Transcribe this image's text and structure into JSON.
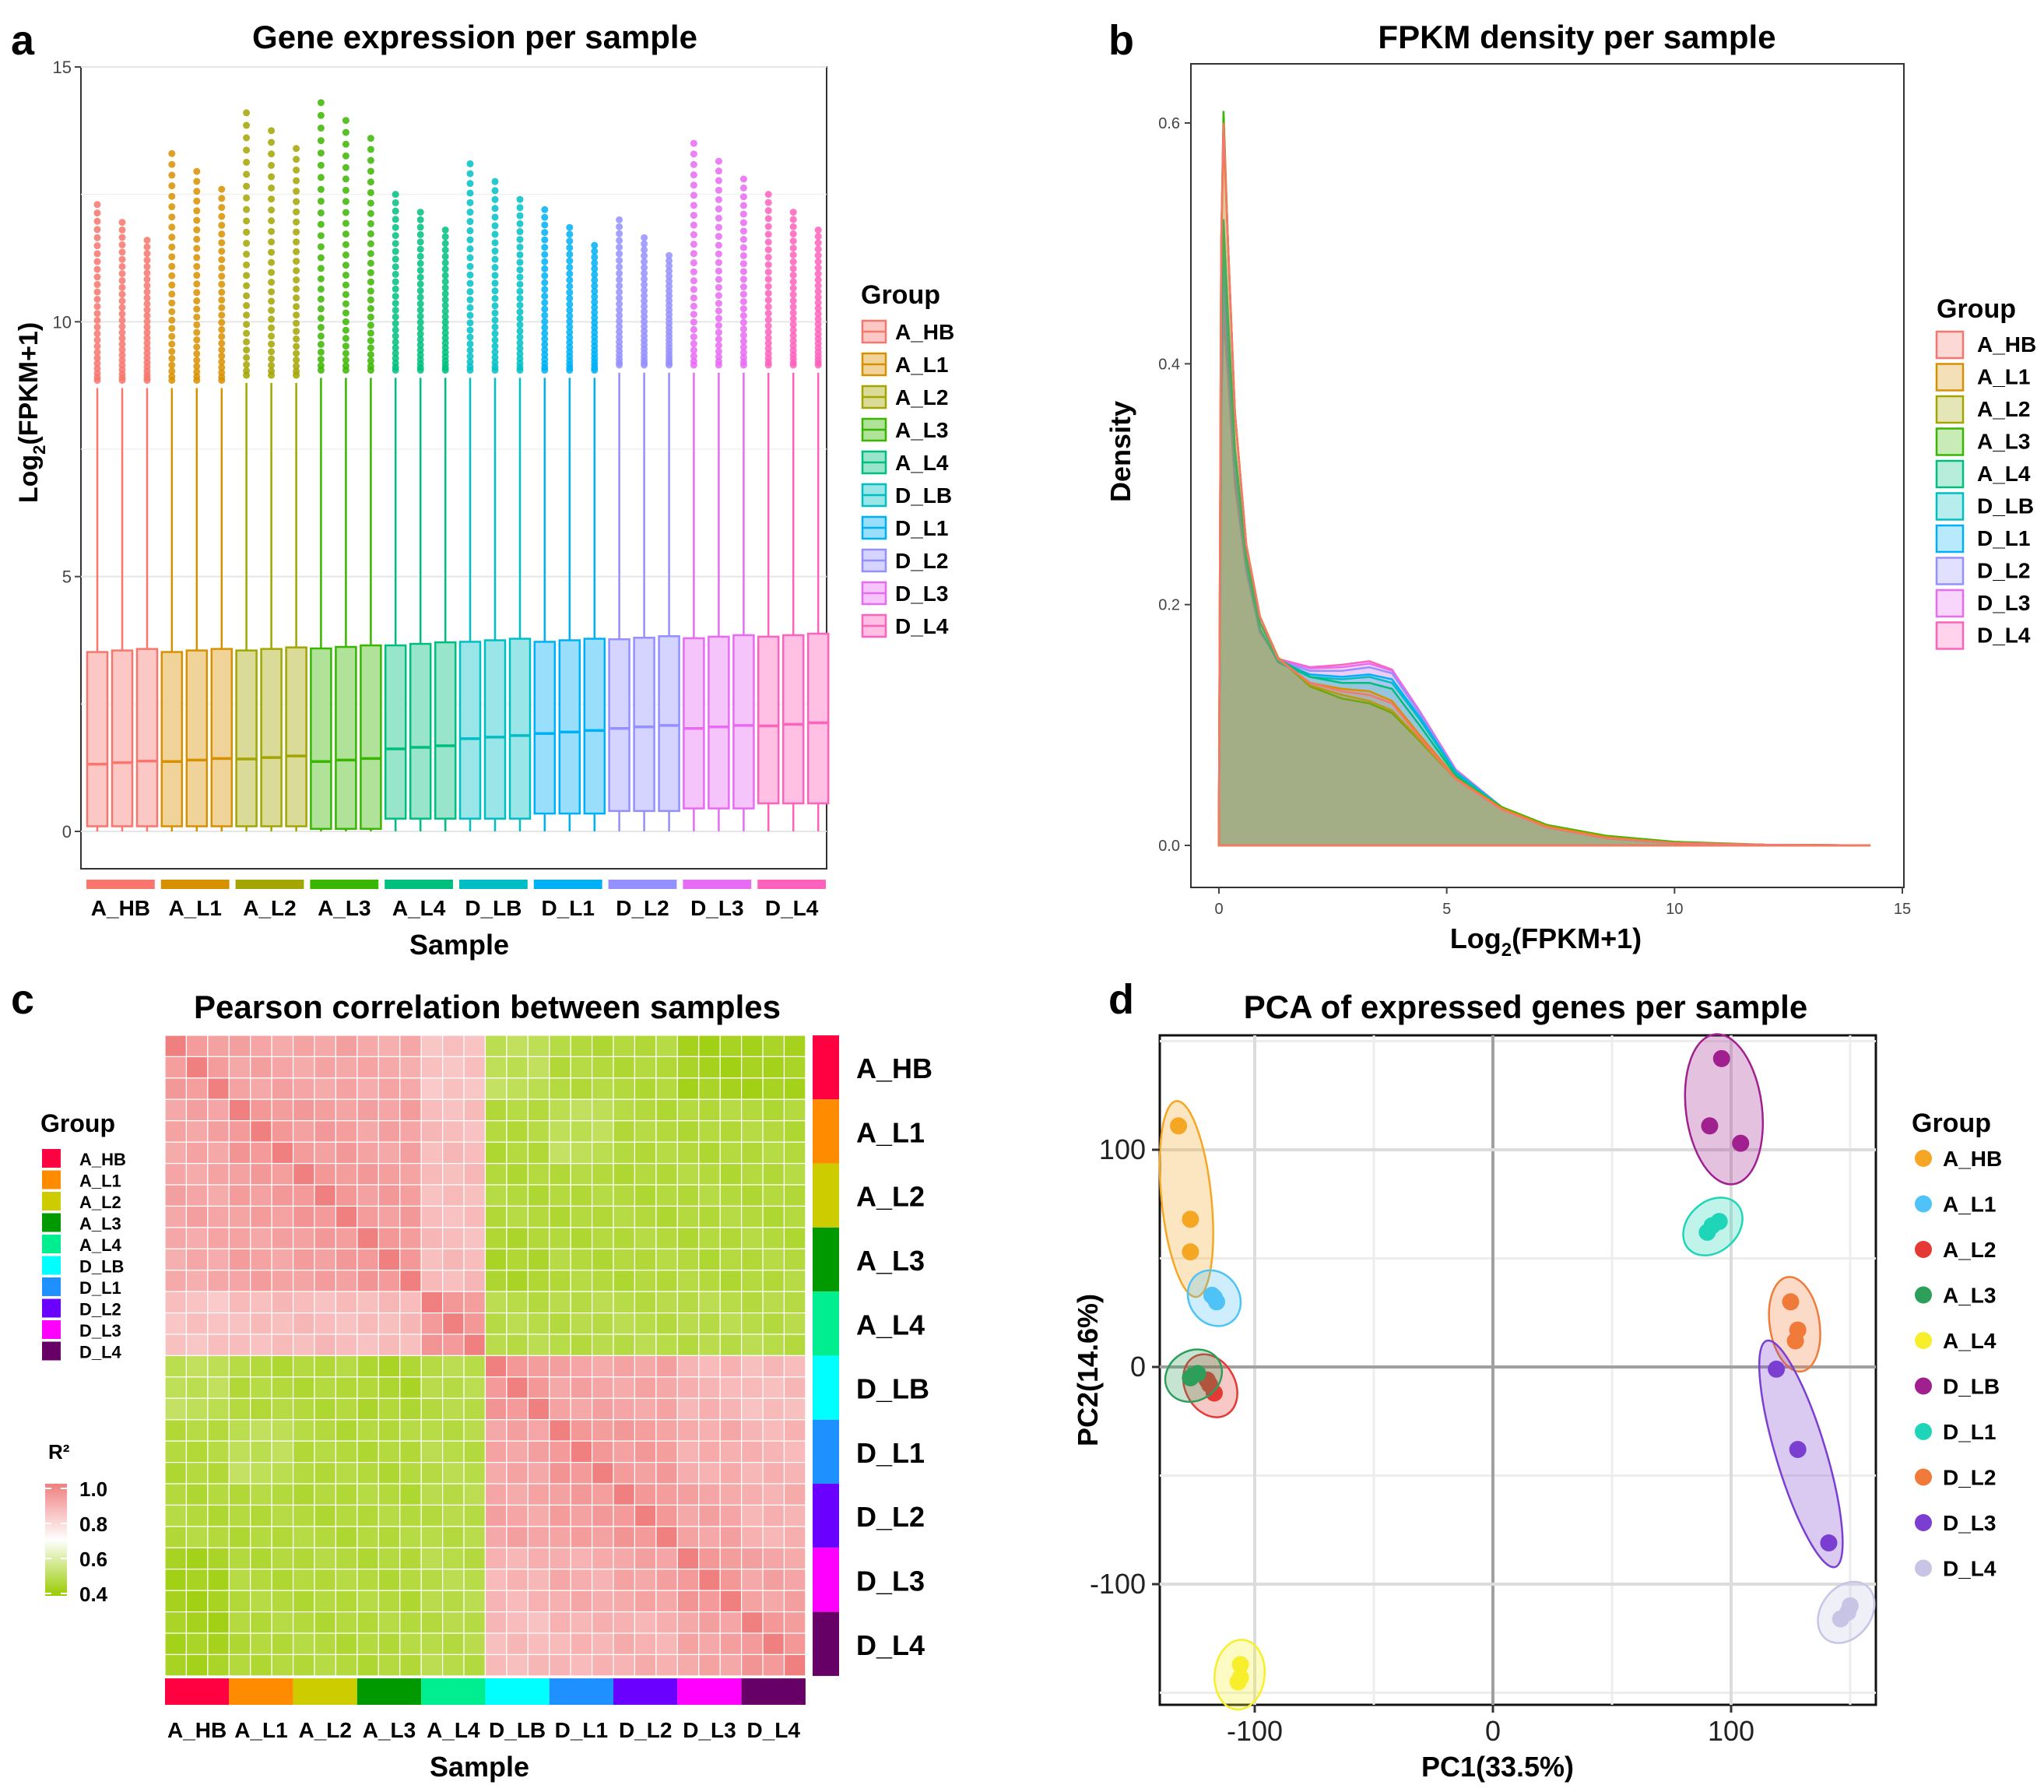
{
  "colors": {
    "ggplot_groups": [
      "#F8766D",
      "#D89000",
      "#A3A500",
      "#39B600",
      "#00BF7D",
      "#00BFC4",
      "#00B0F6",
      "#9590FF",
      "#E76BF3",
      "#FF62BC"
    ],
    "heat_groups": [
      "#FF0040",
      "#FF8C00",
      "#CCCC00",
      "#009900",
      "#00EE90",
      "#00FFFF",
      "#1E90FF",
      "#6A00FF",
      "#FF00FF",
      "#660066"
    ],
    "pca_groups": [
      "#F5A623",
      "#4FC3F7",
      "#E53935",
      "#2E9E5B",
      "#F7EF2B",
      "#A0208F",
      "#1ED6B7",
      "#F07A3A",
      "#7A3FD1",
      "#C7C4E6"
    ],
    "heat_low": "#99CC00",
    "heat_mid": "#FFFFFF",
    "heat_high": "#F08080"
  },
  "groups": [
    "A_HB",
    "A_L1",
    "A_L2",
    "A_L3",
    "A_L4",
    "D_LB",
    "D_L1",
    "D_L2",
    "D_L3",
    "D_L4"
  ],
  "panels": {
    "a": {
      "letter": "a",
      "title": "Gene expression per sample",
      "xlabel": "Sample",
      "ylabel_main": "Log",
      "ylabel_sub": "2",
      "ylabel_tail": "(FPKM+1)",
      "legend_title": "Group"
    },
    "b": {
      "letter": "b",
      "title": "FPKM density per sample",
      "xlabel_main": "Log",
      "xlabel_sub": "2",
      "xlabel_tail": "(FPKM+1)",
      "ylabel": "Density",
      "legend_title": "Group"
    },
    "c": {
      "letter": "c",
      "title": "Pearson correlation between samples",
      "xlabel": "Sample",
      "legend_title": "Group",
      "scale_title": "R²",
      "scale_ticks": [
        "1.0",
        "0.8",
        "0.6",
        "0.4"
      ]
    },
    "d": {
      "letter": "d",
      "title": "PCA of expressed genes per sample",
      "xlabel": "PC1(33.5%)",
      "ylabel": "PC2(14.6%)",
      "legend_title": "Group"
    }
  },
  "chart_data": [
    {
      "type": "box",
      "id": "a",
      "title": "Gene expression per sample",
      "xlabel": "Sample",
      "ylabel": "Log2(FPKM+1)",
      "ylim": [
        0,
        15
      ],
      "yticks": [
        0,
        5,
        10,
        15
      ],
      "categories": [
        "A_HB",
        "A_L1",
        "A_L2",
        "A_L3",
        "A_L4",
        "D_LB",
        "D_L1",
        "D_L2",
        "D_L3",
        "D_L4"
      ],
      "replicates": 3,
      "median": [
        1.35,
        1.4,
        1.45,
        1.4,
        1.65,
        1.85,
        1.95,
        2.05,
        2.05,
        2.1
      ],
      "q1": [
        0.1,
        0.1,
        0.1,
        0.05,
        0.25,
        0.25,
        0.35,
        0.4,
        0.45,
        0.55
      ],
      "q3": [
        3.55,
        3.55,
        3.58,
        3.62,
        3.68,
        3.75,
        3.75,
        3.8,
        3.82,
        3.85
      ],
      "whisker_high": [
        8.7,
        8.7,
        8.8,
        8.9,
        8.9,
        8.9,
        8.9,
        9.0,
        9.0,
        9.0
      ],
      "max_outlier": [
        12.3,
        13.3,
        14.1,
        14.3,
        12.5,
        13.1,
        12.2,
        12.0,
        13.5,
        12.5
      ]
    },
    {
      "type": "area",
      "id": "b",
      "title": "FPKM density per sample",
      "xlabel": "Log2(FPKM+1)",
      "ylabel": "Density",
      "xlim": [
        -0.5,
        15
      ],
      "ylim": [
        -0.015,
        0.64
      ],
      "xticks": [
        0,
        5,
        10,
        15
      ],
      "yticks": [
        0.0,
        0.2,
        0.4,
        0.6
      ],
      "x": [
        0,
        0.05,
        0.1,
        0.2,
        0.35,
        0.6,
        0.9,
        1.3,
        2,
        2.7,
        3.3,
        3.8,
        4.4,
        5.2,
        6.2,
        7.2,
        8.5,
        10,
        12,
        14.3
      ],
      "series": [
        {
          "name": "A_HB",
          "values": [
            0.02,
            0.5,
            0.6,
            0.5,
            0.36,
            0.25,
            0.19,
            0.155,
            0.135,
            0.128,
            0.125,
            0.118,
            0.09,
            0.055,
            0.03,
            0.015,
            0.006,
            0.002,
            0.0005,
            0
          ]
        },
        {
          "name": "A_L1",
          "values": [
            0.02,
            0.49,
            0.59,
            0.5,
            0.36,
            0.25,
            0.19,
            0.155,
            0.135,
            0.13,
            0.128,
            0.12,
            0.092,
            0.056,
            0.031,
            0.016,
            0.007,
            0.002,
            0.0005,
            0
          ]
        },
        {
          "name": "A_L2",
          "values": [
            0.02,
            0.5,
            0.6,
            0.5,
            0.36,
            0.25,
            0.19,
            0.156,
            0.133,
            0.125,
            0.12,
            0.112,
            0.088,
            0.055,
            0.031,
            0.016,
            0.007,
            0.002,
            0.0005,
            0
          ]
        },
        {
          "name": "A_L3",
          "values": [
            0.02,
            0.5,
            0.61,
            0.5,
            0.36,
            0.25,
            0.19,
            0.156,
            0.132,
            0.122,
            0.118,
            0.11,
            0.087,
            0.055,
            0.032,
            0.017,
            0.008,
            0.003,
            0.0006,
            0
          ]
        },
        {
          "name": "A_L4",
          "values": [
            0.02,
            0.44,
            0.52,
            0.44,
            0.33,
            0.24,
            0.185,
            0.155,
            0.14,
            0.135,
            0.135,
            0.13,
            0.1,
            0.058,
            0.031,
            0.015,
            0.006,
            0.002,
            0.0005,
            0
          ]
        },
        {
          "name": "D_LB",
          "values": [
            0.02,
            0.42,
            0.5,
            0.43,
            0.32,
            0.235,
            0.18,
            0.152,
            0.14,
            0.138,
            0.14,
            0.135,
            0.105,
            0.06,
            0.032,
            0.015,
            0.006,
            0.002,
            0.0005,
            0
          ]
        },
        {
          "name": "D_L1",
          "values": [
            0.02,
            0.41,
            0.49,
            0.42,
            0.32,
            0.235,
            0.18,
            0.153,
            0.142,
            0.14,
            0.142,
            0.138,
            0.107,
            0.061,
            0.032,
            0.015,
            0.006,
            0.002,
            0.0005,
            0
          ]
        },
        {
          "name": "D_L2",
          "values": [
            0.02,
            0.39,
            0.47,
            0.41,
            0.31,
            0.23,
            0.178,
            0.153,
            0.145,
            0.145,
            0.148,
            0.143,
            0.11,
            0.062,
            0.032,
            0.015,
            0.006,
            0.002,
            0.0005,
            0
          ]
        },
        {
          "name": "D_L3",
          "values": [
            0.02,
            0.37,
            0.45,
            0.4,
            0.31,
            0.23,
            0.178,
            0.154,
            0.147,
            0.148,
            0.151,
            0.145,
            0.111,
            0.062,
            0.032,
            0.015,
            0.006,
            0.002,
            0.0005,
            0
          ]
        },
        {
          "name": "D_L4",
          "values": [
            0.02,
            0.36,
            0.44,
            0.39,
            0.3,
            0.228,
            0.177,
            0.155,
            0.148,
            0.15,
            0.153,
            0.146,
            0.112,
            0.063,
            0.032,
            0.015,
            0.006,
            0.002,
            0.0005,
            0
          ]
        }
      ]
    },
    {
      "type": "heatmap",
      "id": "c",
      "title": "Pearson correlation between samples",
      "xlabel": "Sample",
      "categories": [
        "A_HB",
        "A_L1",
        "A_L2",
        "A_L3",
        "A_L4",
        "D_LB",
        "D_L1",
        "D_L2",
        "D_L3",
        "D_L4"
      ],
      "replicates": 3,
      "color_range": [
        0.4,
        1.0
      ],
      "group_matrix": [
        [
          0.92,
          0.9,
          0.9,
          0.89,
          0.82,
          0.55,
          0.5,
          0.5,
          0.45,
          0.45
        ],
        [
          0.9,
          0.93,
          0.92,
          0.91,
          0.84,
          0.5,
          0.55,
          0.5,
          0.5,
          0.5
        ],
        [
          0.9,
          0.92,
          0.93,
          0.92,
          0.84,
          0.5,
          0.5,
          0.5,
          0.5,
          0.5
        ],
        [
          0.89,
          0.91,
          0.92,
          0.93,
          0.84,
          0.48,
          0.5,
          0.5,
          0.5,
          0.5
        ],
        [
          0.82,
          0.84,
          0.84,
          0.84,
          0.93,
          0.52,
          0.52,
          0.52,
          0.52,
          0.52
        ],
        [
          0.55,
          0.5,
          0.5,
          0.48,
          0.52,
          0.93,
          0.9,
          0.9,
          0.86,
          0.84
        ],
        [
          0.5,
          0.55,
          0.5,
          0.5,
          0.52,
          0.9,
          0.93,
          0.92,
          0.88,
          0.86
        ],
        [
          0.5,
          0.5,
          0.5,
          0.5,
          0.52,
          0.9,
          0.92,
          0.93,
          0.9,
          0.87
        ],
        [
          0.45,
          0.5,
          0.5,
          0.5,
          0.52,
          0.86,
          0.88,
          0.9,
          0.93,
          0.9
        ],
        [
          0.45,
          0.5,
          0.5,
          0.5,
          0.52,
          0.84,
          0.86,
          0.87,
          0.9,
          0.93
        ]
      ]
    },
    {
      "type": "scatter",
      "id": "d",
      "title": "PCA of expressed genes per sample",
      "xlabel": "PC1(33.5%)",
      "ylabel": "PC2(14.6%)",
      "xlim": [
        -140,
        160
      ],
      "ylim": [
        -155,
        155
      ],
      "xticks": [
        -100,
        0,
        100
      ],
      "yticks": [
        -100,
        0,
        100
      ],
      "series": [
        {
          "name": "A_HB",
          "points": [
            [
              -132,
              111
            ],
            [
              -127,
              68
            ],
            [
              -127,
              53
            ]
          ]
        },
        {
          "name": "A_L1",
          "points": [
            [
              -118,
              33
            ],
            [
              -116,
              30
            ],
            [
              -117,
              32
            ]
          ]
        },
        {
          "name": "A_L2",
          "points": [
            [
              -119,
              -8
            ],
            [
              -117,
              -12
            ],
            [
              -120,
              -6
            ]
          ]
        },
        {
          "name": "A_L3",
          "points": [
            [
              -126,
              -4
            ],
            [
              -124,
              -3
            ],
            [
              -127,
              -5
            ]
          ]
        },
        {
          "name": "A_L4",
          "points": [
            [
              -106,
              -137
            ],
            [
              -106,
              -143
            ],
            [
              -107,
              -145
            ]
          ]
        },
        {
          "name": "D_LB",
          "points": [
            [
              96,
              142
            ],
            [
              91,
              111
            ],
            [
              104,
              103
            ]
          ]
        },
        {
          "name": "D_L1",
          "points": [
            [
              90,
              62
            ],
            [
              95,
              67
            ],
            [
              92,
              65
            ]
          ]
        },
        {
          "name": "D_L2",
          "points": [
            [
              125,
              30
            ],
            [
              128,
              17
            ],
            [
              127,
              12
            ]
          ]
        },
        {
          "name": "D_L3",
          "points": [
            [
              119,
              -1
            ],
            [
              128,
              -38
            ],
            [
              141,
              -81
            ]
          ]
        },
        {
          "name": "D_L4",
          "points": [
            [
              146,
              -116
            ],
            [
              149,
              -113
            ],
            [
              150,
              -110
            ]
          ]
        }
      ]
    }
  ]
}
